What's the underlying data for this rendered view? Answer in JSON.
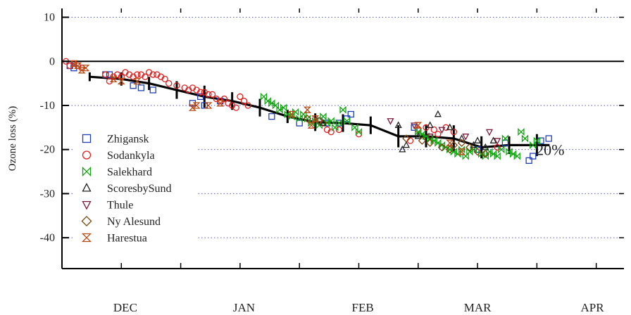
{
  "chart_data": {
    "type": "scatter",
    "title": "",
    "xlabel": "",
    "ylabel": "Ozone loss (%)",
    "xlim": [
      0,
      142
    ],
    "ylim": [
      -47,
      12
    ],
    "y_ticks": [
      10,
      0,
      -10,
      -20,
      -30,
      -40
    ],
    "y_tick_labels": [
      "10",
      "0",
      "-10",
      "-20",
      "-30",
      "-40"
    ],
    "x_minor_ticks": [
      0,
      15,
      30,
      45,
      60,
      75,
      90,
      105,
      120,
      135
    ],
    "month_labels": [
      {
        "label": "DEC",
        "x": 16
      },
      {
        "label": "JAN",
        "x": 46
      },
      {
        "label": "FEB",
        "x": 76
      },
      {
        "label": "MAR",
        "x": 105
      },
      {
        "label": "APR",
        "x": 134
      }
    ],
    "grid": true,
    "zero_line": true,
    "legend_position": "left",
    "annotation": {
      "text": "20%",
      "x": 118,
      "y": -20
    },
    "colors": {
      "Zhigansk": "#1f3fb4",
      "Sodankyla": "#e02020",
      "Salekhard": "#11a611",
      "ScoresbySund": "#222222",
      "Thule": "#7a1a3a",
      "Ny Alesund": "#7a4a10",
      "Harestua": "#b84a14",
      "mean": "#000000",
      "grid": "#5a5ac8"
    },
    "series": [
      {
        "name": "Zhigansk",
        "marker": "square",
        "points": [
          [
            2,
            -1
          ],
          [
            3,
            -1.5
          ],
          [
            11,
            -3
          ],
          [
            12,
            -3
          ],
          [
            18,
            -5.5
          ],
          [
            20,
            -6
          ],
          [
            23,
            -6.5
          ],
          [
            33,
            -9.5
          ],
          [
            35,
            -8
          ],
          [
            36,
            -10
          ],
          [
            40,
            -9
          ],
          [
            53,
            -12.5
          ],
          [
            60,
            -14
          ],
          [
            65,
            -13.5
          ],
          [
            67,
            -14
          ],
          [
            70,
            -14
          ],
          [
            72,
            -13
          ],
          [
            73,
            -12
          ],
          [
            89,
            -15
          ],
          [
            105,
            -20
          ],
          [
            112,
            -18.5
          ],
          [
            118,
            -22.5
          ],
          [
            119,
            -21.5
          ],
          [
            121,
            -18
          ],
          [
            123,
            -17.5
          ]
        ]
      },
      {
        "name": "Sodankyla",
        "marker": "circle",
        "points": [
          [
            1,
            0
          ],
          [
            2,
            -1
          ],
          [
            3,
            -0.5
          ],
          [
            4,
            -1
          ],
          [
            5,
            -1.5
          ],
          [
            11,
            -3
          ],
          [
            12,
            -4.5
          ],
          [
            13,
            -3.5
          ],
          [
            14,
            -3
          ],
          [
            15,
            -3.5
          ],
          [
            16,
            -2.5
          ],
          [
            17,
            -3
          ],
          [
            18,
            -3.5
          ],
          [
            19,
            -3
          ],
          [
            20,
            -3
          ],
          [
            21,
            -3.5
          ],
          [
            22,
            -2.5
          ],
          [
            23,
            -3
          ],
          [
            24,
            -3
          ],
          [
            25,
            -3.5
          ],
          [
            26,
            -4
          ],
          [
            27,
            -5
          ],
          [
            29,
            -5.5
          ],
          [
            31,
            -6
          ],
          [
            32,
            -6.5
          ],
          [
            33,
            -6
          ],
          [
            34,
            -6.5
          ],
          [
            35,
            -7
          ],
          [
            36,
            -7
          ],
          [
            37,
            -7.5
          ],
          [
            38,
            -7.5
          ],
          [
            39,
            -8.5
          ],
          [
            40,
            -9
          ],
          [
            41,
            -8.5
          ],
          [
            42,
            -9.5
          ],
          [
            43,
            -10
          ],
          [
            44,
            -10.5
          ],
          [
            45,
            -8
          ],
          [
            46,
            -9
          ],
          [
            47,
            -10
          ],
          [
            66,
            -14
          ],
          [
            67,
            -15.5
          ],
          [
            68,
            -16
          ],
          [
            70,
            -15.5
          ],
          [
            75,
            -16.5
          ],
          [
            88,
            -18
          ],
          [
            90,
            -15.5
          ],
          [
            92,
            -15
          ],
          [
            94,
            -15.5
          ],
          [
            95,
            -16.5
          ],
          [
            97,
            -15
          ],
          [
            99,
            -16
          ],
          [
            110,
            -19.5
          ]
        ]
      },
      {
        "name": "Salekhard",
        "marker": "bowtie",
        "points": [
          [
            51,
            -8
          ],
          [
            52,
            -9
          ],
          [
            53,
            -9.5
          ],
          [
            54,
            -10
          ],
          [
            55,
            -11
          ],
          [
            56,
            -10.5
          ],
          [
            57,
            -12
          ],
          [
            58,
            -12.5
          ],
          [
            59,
            -11.5
          ],
          [
            60,
            -13
          ],
          [
            61,
            -12
          ],
          [
            62,
            -13
          ],
          [
            63,
            -14
          ],
          [
            64,
            -13.5
          ],
          [
            65,
            -14.5
          ],
          [
            66,
            -12.5
          ],
          [
            67,
            -14
          ],
          [
            68,
            -13.5
          ],
          [
            69,
            -15
          ],
          [
            70,
            -14
          ],
          [
            71,
            -11
          ],
          [
            72,
            -13.5
          ],
          [
            74,
            -15
          ],
          [
            75,
            -16
          ],
          [
            90,
            -16
          ],
          [
            91,
            -16.5
          ],
          [
            92,
            -17
          ],
          [
            93,
            -17.5
          ],
          [
            94,
            -18
          ],
          [
            95,
            -18.5
          ],
          [
            96,
            -19
          ],
          [
            97,
            -19.5
          ],
          [
            98,
            -20
          ],
          [
            99,
            -20.5
          ],
          [
            100,
            -21
          ],
          [
            101,
            -20
          ],
          [
            102,
            -21.5
          ],
          [
            103,
            -20.5
          ],
          [
            104,
            -20
          ],
          [
            106,
            -21
          ],
          [
            107,
            -21.5
          ],
          [
            108,
            -20.5
          ],
          [
            109,
            -21
          ],
          [
            110,
            -21.5
          ],
          [
            111,
            -20
          ],
          [
            112,
            -17.5
          ],
          [
            113,
            -20.5
          ],
          [
            114,
            -21
          ],
          [
            115,
            -21.5
          ],
          [
            116,
            -16
          ],
          [
            117,
            -17.5
          ],
          [
            119,
            -19
          ],
          [
            120,
            -18
          ]
        ]
      },
      {
        "name": "ScoresbySund",
        "marker": "triangle",
        "points": [
          [
            66,
            -14
          ],
          [
            85,
            -14.5
          ],
          [
            86,
            -20
          ],
          [
            87,
            -19
          ],
          [
            90,
            -17
          ],
          [
            93,
            -14.5
          ],
          [
            95,
            -12
          ],
          [
            98,
            -15
          ],
          [
            101,
            -17.5
          ],
          [
            104,
            -19
          ],
          [
            105,
            -18
          ],
          [
            107,
            -19.5
          ],
          [
            109,
            -18
          ]
        ]
      },
      {
        "name": "Thule",
        "marker": "triangle-down",
        "points": [
          [
            83,
            -13.5
          ],
          [
            89,
            -14.5
          ],
          [
            93,
            -17
          ],
          [
            96,
            -15.5
          ],
          [
            102,
            -17
          ],
          [
            108,
            -16
          ],
          [
            110,
            -18
          ]
        ]
      },
      {
        "name": "Ny Alesund",
        "marker": "diamond",
        "points": [
          [
            62,
            -13
          ],
          [
            65,
            -13.5
          ],
          [
            87,
            -17.5
          ],
          [
            91,
            -18
          ],
          [
            93,
            -18.5
          ],
          [
            96,
            -19.5
          ],
          [
            98,
            -20
          ],
          [
            99,
            -19
          ],
          [
            101,
            -18.5
          ],
          [
            103,
            -19.5
          ],
          [
            105,
            -20.5
          ],
          [
            107,
            -21
          ]
        ]
      },
      {
        "name": "Harestua",
        "marker": "hourglass",
        "points": [
          [
            3,
            -0.5
          ],
          [
            4,
            -1
          ],
          [
            5,
            -2
          ],
          [
            6,
            -1.5
          ],
          [
            13,
            -4
          ],
          [
            15,
            -4.5
          ],
          [
            19,
            -4.5
          ],
          [
            33,
            -10.5
          ],
          [
            34,
            -10
          ],
          [
            37,
            -10
          ],
          [
            40,
            -9.5
          ],
          [
            58,
            -12
          ],
          [
            62,
            -11
          ],
          [
            63,
            -14.5
          ],
          [
            64,
            -13
          ],
          [
            90,
            -14.5
          ],
          [
            98,
            -18.5
          ],
          [
            101,
            -20.5
          ]
        ]
      }
    ],
    "mean_line": {
      "name": "mean",
      "x": [
        7,
        15,
        22,
        29,
        36,
        43,
        50,
        57,
        64,
        71,
        78,
        85,
        92,
        99,
        106,
        113,
        120
      ],
      "y": [
        -3.5,
        -4,
        -5,
        -6.5,
        -8,
        -9,
        -10.5,
        -12.5,
        -13.8,
        -14,
        -14.5,
        -17,
        -17,
        -17.5,
        -19.5,
        -19,
        -19
      ],
      "err": [
        1,
        1.5,
        1.5,
        2,
        2.5,
        2,
        2,
        1.5,
        2,
        2,
        2,
        2.5,
        2.5,
        3,
        2.5,
        2,
        2.5
      ]
    }
  }
}
